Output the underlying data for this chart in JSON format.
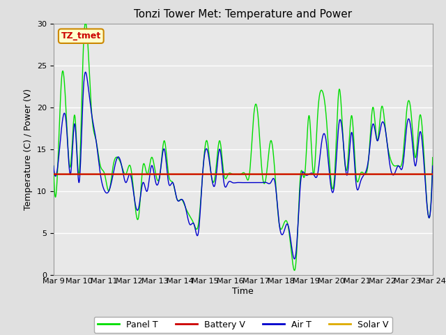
{
  "title": "Tonzi Tower Met: Temperature and Power",
  "xlabel": "Time",
  "ylabel": "Temperature (C) / Power (V)",
  "ylim": [
    0,
    30
  ],
  "yticks": [
    0,
    5,
    10,
    15,
    20,
    25,
    30
  ],
  "x_labels": [
    "Mar 9",
    "Mar 10",
    "Mar 11",
    "Mar 12",
    "Mar 13",
    "Mar 14",
    "Mar 15",
    "Mar 16",
    "Mar 17",
    "Mar 18",
    "Mar 19",
    "Mar 20",
    "Mar 21",
    "Mar 22",
    "Mar 23",
    "Mar 24"
  ],
  "panel_T_color": "#00dd00",
  "air_T_color": "#0000cc",
  "battery_V_color": "#cc0000",
  "solar_V_color": "#ddaa00",
  "fig_bg_color": "#e0e0e0",
  "plot_bg_color": "#e8e8e8",
  "annotation_text": "TZ_tmet",
  "annotation_bg": "#ffffcc",
  "annotation_border": "#cc8800",
  "annotation_text_color": "#cc0000",
  "legend_entries": [
    "Panel T",
    "Battery V",
    "Air T",
    "Solar V"
  ],
  "legend_colors": [
    "#00dd00",
    "#cc0000",
    "#0000cc",
    "#ddaa00"
  ],
  "title_fontsize": 11,
  "label_fontsize": 9,
  "tick_fontsize": 8,
  "panel_T": [
    13,
    13,
    24,
    19,
    13,
    19,
    12,
    27,
    28,
    19,
    16,
    13,
    12,
    10,
    13,
    14,
    13,
    12,
    13,
    9,
    7,
    13,
    12,
    14,
    12,
    12,
    16,
    12,
    11,
    9,
    9,
    8,
    7,
    6,
    6,
    12,
    16,
    12,
    12,
    16,
    12,
    12,
    12,
    12,
    12,
    12,
    12,
    19,
    19,
    12,
    12,
    16,
    12,
    6,
    6,
    6,
    2,
    2,
    12,
    12,
    19,
    12,
    19,
    22,
    19,
    12,
    12,
    22,
    16,
    13,
    19,
    12,
    12,
    12,
    14,
    20,
    16,
    20,
    17,
    14,
    13,
    13,
    14,
    20,
    19,
    14,
    19,
    14,
    7,
    14
  ],
  "air_T": [
    13,
    13,
    18,
    18,
    12,
    18,
    11,
    22,
    23,
    19,
    16,
    12,
    10,
    10,
    12,
    14,
    13,
    11,
    12,
    9,
    8,
    11,
    10,
    13,
    11,
    12,
    15,
    11,
    11,
    9,
    9,
    8,
    6,
    6,
    5,
    12,
    15,
    12,
    11,
    15,
    11,
    11,
    11,
    11,
    11,
    11,
    11,
    11,
    11,
    11,
    11,
    11,
    11,
    6,
    5,
    6,
    3,
    3,
    11,
    12,
    12,
    12,
    12,
    16,
    16,
    11,
    11,
    18,
    16,
    12,
    17,
    11,
    11,
    12,
    14,
    18,
    16,
    18,
    17,
    13,
    12,
    13,
    13,
    18,
    17,
    13,
    17,
    13,
    7,
    13
  ],
  "battery_V": 12.0,
  "solar_V": 12.0
}
